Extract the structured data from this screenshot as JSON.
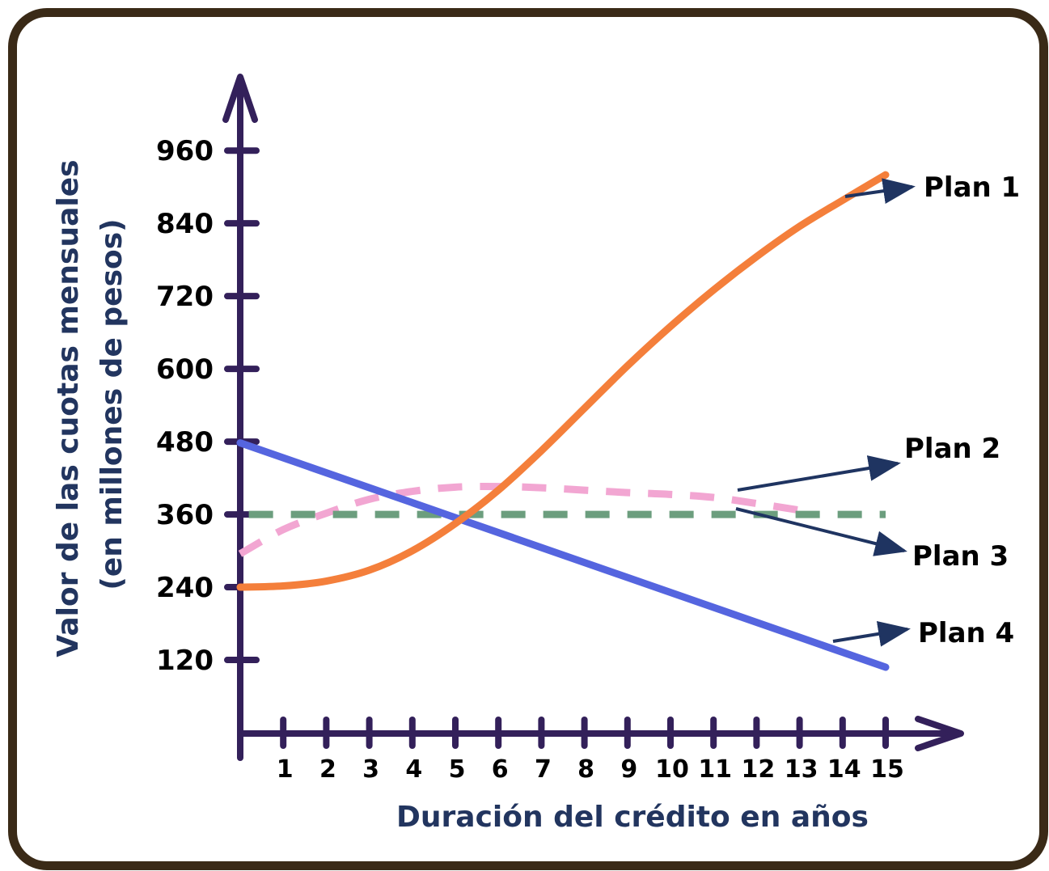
{
  "chart_data": {
    "type": "line",
    "ylabel_line1": "Valor de las cuotas mensuales",
    "ylabel_line2": "(en millones de pesos)",
    "xlabel": "Duración del crédito en años",
    "y_ticks": [
      120,
      240,
      360,
      480,
      600,
      720,
      840,
      960
    ],
    "x_ticks": [
      1,
      2,
      3,
      4,
      5,
      6,
      7,
      8,
      9,
      10,
      11,
      12,
      13,
      14,
      15
    ],
    "xlim": [
      0,
      15
    ],
    "ylim": [
      0,
      960
    ],
    "series": [
      {
        "name": "Plan 1",
        "color": "#f47f3b",
        "style": "solid",
        "x": [
          0,
          1,
          2,
          3,
          4,
          5,
          6,
          7,
          8,
          9,
          10,
          11,
          12,
          13,
          14,
          15
        ],
        "y": [
          240,
          242,
          250,
          268,
          300,
          345,
          400,
          465,
          535,
          605,
          670,
          730,
          785,
          835,
          878,
          920
        ]
      },
      {
        "name": "Plan 2",
        "color": "#f2a6d2",
        "style": "dashed",
        "x": [
          0,
          1,
          2,
          3,
          4,
          5,
          6,
          7,
          8,
          9,
          10,
          11,
          12,
          13
        ],
        "y": [
          295,
          335,
          362,
          385,
          398,
          405,
          406,
          404,
          400,
          396,
          393,
          388,
          378,
          367
        ]
      },
      {
        "name": "Plan 3",
        "color": "#6c9e7e",
        "style": "dashed",
        "x": [
          0.2,
          15
        ],
        "y": [
          360,
          360
        ]
      },
      {
        "name": "Plan 4",
        "color": "#5565df",
        "style": "solid",
        "x": [
          0,
          15
        ],
        "y": [
          478,
          108
        ]
      }
    ],
    "annotations": [
      "Plan 1",
      "Plan 2",
      "Plan 3",
      "Plan 4"
    ]
  },
  "colors": {
    "axis": "#33205a",
    "arrow": "#1f3461",
    "frame": "#3a2a17",
    "title": "#22355f"
  }
}
